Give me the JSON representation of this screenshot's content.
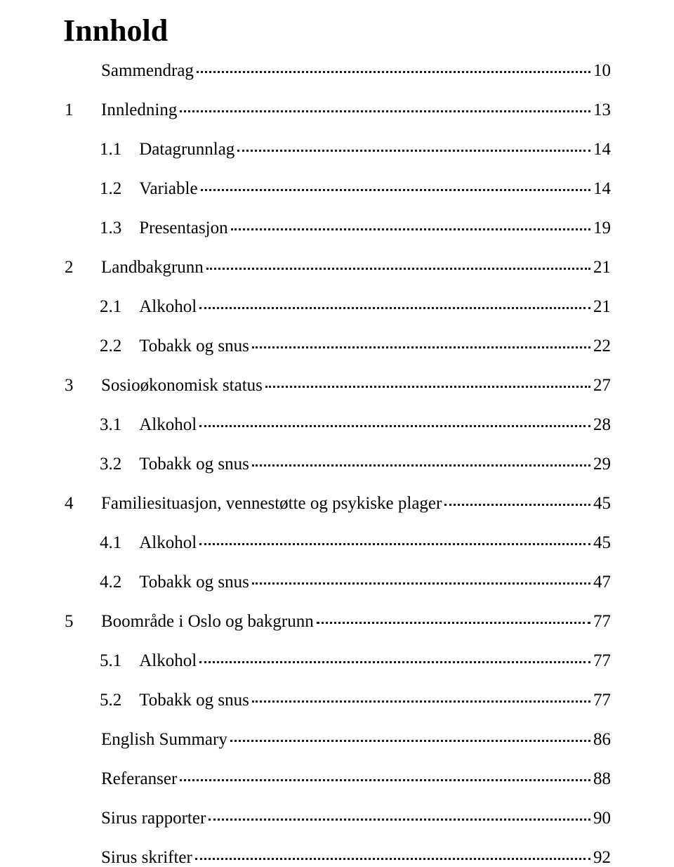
{
  "title": "Innhold",
  "entries": [
    {
      "num": "",
      "label": "Sammendrag",
      "page": "10",
      "indent": 1
    },
    {
      "num": "1",
      "label": "Innledning",
      "page": "13",
      "indent": 1
    },
    {
      "num": "1.1",
      "label": "Datagrunnlag",
      "page": "14",
      "indent": 2
    },
    {
      "num": "1.2",
      "label": "Variable",
      "page": "14",
      "indent": 2
    },
    {
      "num": "1.3",
      "label": "Presentasjon",
      "page": "19",
      "indent": 2
    },
    {
      "num": "2",
      "label": "Landbakgrunn",
      "page": "21",
      "indent": 1
    },
    {
      "num": "2.1",
      "label": "Alkohol",
      "page": "21",
      "indent": 2
    },
    {
      "num": "2.2",
      "label": "Tobakk og snus",
      "page": "22",
      "indent": 2
    },
    {
      "num": "3",
      "label": "Sosioøkonomisk status",
      "page": "27",
      "indent": 1
    },
    {
      "num": "3.1",
      "label": "Alkohol",
      "page": "28",
      "indent": 2
    },
    {
      "num": "3.2",
      "label": "Tobakk og snus",
      "page": "29",
      "indent": 2
    },
    {
      "num": "4",
      "label": "Familiesituasjon, vennestøtte og psykiske plager",
      "page": "45",
      "indent": 1
    },
    {
      "num": "4.1",
      "label": "Alkohol",
      "page": "45",
      "indent": 2
    },
    {
      "num": "4.2",
      "label": "Tobakk og snus",
      "page": "47",
      "indent": 2
    },
    {
      "num": "5",
      "label": "Boområde i Oslo og bakgrunn",
      "page": "77",
      "indent": 1
    },
    {
      "num": "5.1",
      "label": "Alkohol",
      "page": "77",
      "indent": 2
    },
    {
      "num": "5.2",
      "label": "Tobakk og snus",
      "page": "77",
      "indent": 2
    },
    {
      "num": "",
      "label": "English Summary",
      "page": "86",
      "indent": 1
    },
    {
      "num": "",
      "label": "Referanser",
      "page": "88",
      "indent": 1
    },
    {
      "num": "",
      "label": "Sirus rapporter",
      "page": "90",
      "indent": 1
    },
    {
      "num": "",
      "label": "Sirus skrifter",
      "page": "92",
      "indent": 1
    }
  ],
  "colors": {
    "background": "#ffffff",
    "text": "#000000",
    "leader": "#000000"
  },
  "typography": {
    "title_fontsize": 44,
    "body_fontsize": 25,
    "font_family": "Garamond, Georgia, Times New Roman, serif"
  }
}
